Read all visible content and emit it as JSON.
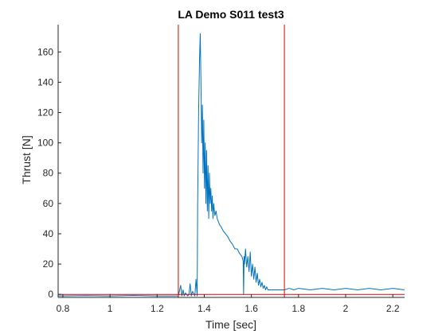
{
  "chart_data": {
    "type": "line",
    "title": "LA Demo S011 test3",
    "xlabel": "Time [sec]",
    "ylabel": "Thrust [N]",
    "xlim": [
      0.78,
      2.25
    ],
    "ylim": [
      -2,
      178
    ],
    "x_ticks": [
      0.8,
      1,
      1.2,
      1.4,
      1.6,
      1.8,
      2,
      2.2
    ],
    "x_tick_labels": [
      "0.8",
      "1",
      "1.2",
      "1.4",
      "1.6",
      "1.8",
      "2",
      "2.2"
    ],
    "y_ticks": [
      0,
      20,
      40,
      60,
      80,
      100,
      120,
      140,
      160
    ],
    "y_tick_labels": [
      "0",
      "20",
      "40",
      "60",
      "80",
      "100",
      "120",
      "140",
      "160"
    ],
    "grid": false,
    "legend": "none",
    "colors": {
      "thrust": "#0072BD",
      "markers": "#E00000",
      "axis": "#262626"
    },
    "vertical_markers": [
      1.29,
      1.74
    ],
    "horizontal_marker": 0,
    "series": [
      {
        "values_x": [
          0.78,
          0.9,
          1.0,
          1.1,
          1.2,
          1.29,
          1.3,
          1.305,
          1.31,
          1.315,
          1.32,
          1.33,
          1.335,
          1.34,
          1.345,
          1.35,
          1.36,
          1.365,
          1.37,
          1.372,
          1.376,
          1.38,
          1.383,
          1.386,
          1.389,
          1.392,
          1.395,
          1.398,
          1.401,
          1.404,
          1.407,
          1.41,
          1.413,
          1.416,
          1.419,
          1.422,
          1.425,
          1.428,
          1.431,
          1.434,
          1.437,
          1.44,
          1.445,
          1.45,
          1.455,
          1.46,
          1.465,
          1.47,
          1.48,
          1.49,
          1.5,
          1.51,
          1.52,
          1.53,
          1.54,
          1.55,
          1.56,
          1.565,
          1.567,
          1.569,
          1.571,
          1.575,
          1.58,
          1.585,
          1.59,
          1.595,
          1.6,
          1.605,
          1.61,
          1.615,
          1.62,
          1.625,
          1.63,
          1.635,
          1.64,
          1.645,
          1.65,
          1.655,
          1.66,
          1.665,
          1.67,
          1.68,
          1.69,
          1.7,
          1.71,
          1.72,
          1.73,
          1.74,
          1.76,
          1.78,
          1.8,
          1.85,
          1.9,
          1.95,
          2.0,
          2.05,
          2.1,
          2.15,
          2.2,
          2.25
        ],
        "values_y": [
          -1,
          -0.8,
          -1,
          -0.7,
          -1,
          -1,
          6,
          -1,
          3,
          -1,
          1,
          -1,
          0,
          7,
          -1,
          2,
          -1,
          10,
          -1,
          60,
          120,
          155,
          172,
          140,
          100,
          125,
          80,
          115,
          70,
          100,
          60,
          95,
          55,
          85,
          50,
          80,
          60,
          70,
          55,
          65,
          50,
          60,
          52,
          55,
          50,
          48,
          46,
          45,
          42,
          40,
          38,
          35,
          33,
          30,
          30,
          27,
          25,
          22,
          0,
          25,
          20,
          30,
          18,
          25,
          15,
          28,
          12,
          20,
          10,
          18,
          8,
          14,
          6,
          10,
          5,
          8,
          4,
          6,
          3,
          5,
          3,
          3,
          3,
          3,
          3,
          3,
          3,
          3,
          4,
          3,
          4,
          3,
          4,
          3,
          4,
          3,
          4,
          3,
          4,
          3
        ]
      }
    ]
  }
}
